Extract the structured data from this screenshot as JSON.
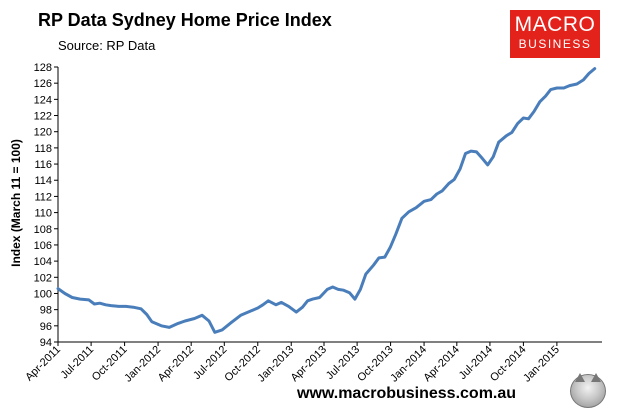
{
  "header": {
    "title": "RP Data Sydney Home Price Index",
    "subtitle": "Source: RP Data"
  },
  "logo": {
    "line1": "MACRO",
    "line2": "BUSINESS",
    "color": "#e3221b"
  },
  "footer": {
    "website": "www.macrobusiness.com.au"
  },
  "chart_data": {
    "type": "line",
    "title": "RP Data Sydney Home Price Index",
    "ylabel": "Index (March 11 = 100)",
    "xlabel": "",
    "ylim": [
      94,
      128
    ],
    "yticks": [
      94,
      96,
      98,
      100,
      102,
      104,
      106,
      108,
      110,
      112,
      114,
      116,
      118,
      120,
      122,
      124,
      126,
      128
    ],
    "xlim": [
      "2011-04-01",
      "2015-05-05"
    ],
    "xticks": [
      {
        "date": "2011-04-01",
        "label": "Apr-2011"
      },
      {
        "date": "2011-07-01",
        "label": "Jul-2011"
      },
      {
        "date": "2011-10-01",
        "label": "Oct-2011"
      },
      {
        "date": "2012-01-01",
        "label": "Jan-2012"
      },
      {
        "date": "2012-04-01",
        "label": "Apr-2012"
      },
      {
        "date": "2012-07-01",
        "label": "Jul-2012"
      },
      {
        "date": "2012-10-01",
        "label": "Oct-2012"
      },
      {
        "date": "2013-01-01",
        "label": "Jan-2013"
      },
      {
        "date": "2013-04-01",
        "label": "Apr-2013"
      },
      {
        "date": "2013-07-01",
        "label": "Jul-2013"
      },
      {
        "date": "2013-10-01",
        "label": "Oct-2013"
      },
      {
        "date": "2014-01-01",
        "label": "Jan-2014"
      },
      {
        "date": "2014-04-01",
        "label": "Apr-2014"
      },
      {
        "date": "2014-07-01",
        "label": "Jul-2014"
      },
      {
        "date": "2014-10-01",
        "label": "Oct-2014"
      },
      {
        "date": "2015-01-01",
        "label": "Jan-2015"
      }
    ],
    "grid": false,
    "line_color": "#4a7ebb",
    "series": [
      {
        "points": [
          [
            "2011-04-01",
            100.6
          ],
          [
            "2011-04-20",
            100.0
          ],
          [
            "2011-05-10",
            99.5
          ],
          [
            "2011-06-01",
            99.3
          ],
          [
            "2011-06-25",
            99.2
          ],
          [
            "2011-07-10",
            98.7
          ],
          [
            "2011-07-25",
            98.8
          ],
          [
            "2011-08-10",
            98.6
          ],
          [
            "2011-08-25",
            98.5
          ],
          [
            "2011-09-15",
            98.4
          ],
          [
            "2011-10-05",
            98.4
          ],
          [
            "2011-10-25",
            98.3
          ],
          [
            "2011-11-15",
            98.1
          ],
          [
            "2011-12-01",
            97.4
          ],
          [
            "2011-12-15",
            96.5
          ],
          [
            "2012-01-10",
            96.0
          ],
          [
            "2012-02-01",
            95.8
          ],
          [
            "2012-02-25",
            96.3
          ],
          [
            "2012-03-15",
            96.6
          ],
          [
            "2012-04-10",
            96.9
          ],
          [
            "2012-05-01",
            97.3
          ],
          [
            "2012-05-20",
            96.6
          ],
          [
            "2012-06-05",
            95.2
          ],
          [
            "2012-06-25",
            95.5
          ],
          [
            "2012-07-20",
            96.4
          ],
          [
            "2012-08-15",
            97.3
          ],
          [
            "2012-09-10",
            97.8
          ],
          [
            "2012-10-01",
            98.2
          ],
          [
            "2012-10-15",
            98.6
          ],
          [
            "2012-10-30",
            99.1
          ],
          [
            "2012-11-20",
            98.6
          ],
          [
            "2012-12-05",
            98.9
          ],
          [
            "2012-12-25",
            98.4
          ],
          [
            "2013-01-15",
            97.7
          ],
          [
            "2013-02-01",
            98.3
          ],
          [
            "2013-02-15",
            99.1
          ],
          [
            "2013-03-01",
            99.3
          ],
          [
            "2013-03-20",
            99.5
          ],
          [
            "2013-04-10",
            100.5
          ],
          [
            "2013-04-25",
            100.8
          ],
          [
            "2013-05-10",
            100.5
          ],
          [
            "2013-05-25",
            100.4
          ],
          [
            "2013-06-10",
            100.1
          ],
          [
            "2013-06-25",
            99.3
          ],
          [
            "2013-07-10",
            100.5
          ],
          [
            "2013-07-25",
            102.4
          ],
          [
            "2013-08-15",
            103.5
          ],
          [
            "2013-08-30",
            104.4
          ],
          [
            "2013-09-15",
            104.5
          ],
          [
            "2013-09-30",
            105.7
          ],
          [
            "2013-10-15",
            107.3
          ],
          [
            "2013-11-01",
            109.3
          ],
          [
            "2013-11-20",
            110.1
          ],
          [
            "2013-12-10",
            110.6
          ],
          [
            "2014-01-01",
            111.4
          ],
          [
            "2014-01-20",
            111.6
          ],
          [
            "2014-02-05",
            112.3
          ],
          [
            "2014-02-20",
            112.7
          ],
          [
            "2014-03-10",
            113.6
          ],
          [
            "2014-03-25",
            114.1
          ],
          [
            "2014-04-10",
            115.4
          ],
          [
            "2014-04-25",
            117.3
          ],
          [
            "2014-05-10",
            117.6
          ],
          [
            "2014-05-25",
            117.5
          ],
          [
            "2014-06-10",
            116.7
          ],
          [
            "2014-06-25",
            115.9
          ],
          [
            "2014-07-10",
            116.9
          ],
          [
            "2014-07-25",
            118.7
          ],
          [
            "2014-08-15",
            119.5
          ],
          [
            "2014-08-30",
            119.9
          ],
          [
            "2014-09-15",
            121.0
          ],
          [
            "2014-10-01",
            121.7
          ],
          [
            "2014-10-15",
            121.6
          ],
          [
            "2014-10-30",
            122.5
          ],
          [
            "2014-11-15",
            123.7
          ],
          [
            "2014-12-01",
            124.4
          ],
          [
            "2014-12-15",
            125.2
          ],
          [
            "2015-01-01",
            125.4
          ],
          [
            "2015-01-20",
            125.4
          ],
          [
            "2015-02-05",
            125.7
          ],
          [
            "2015-02-25",
            125.9
          ],
          [
            "2015-03-15",
            126.4
          ],
          [
            "2015-03-30",
            127.2
          ],
          [
            "2015-04-15",
            127.8
          ]
        ]
      }
    ]
  }
}
